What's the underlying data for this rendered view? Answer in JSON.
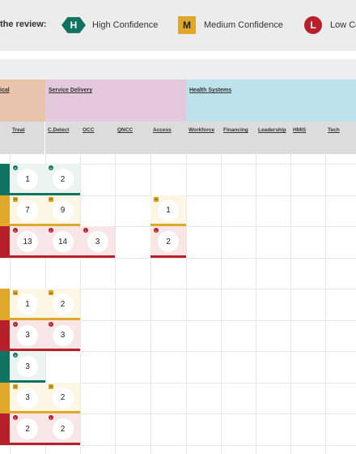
{
  "legend": {
    "title": "the review:",
    "high": {
      "symbol": "H",
      "label": "High Confidence"
    },
    "medium": {
      "symbol": "M",
      "label": "Medium Confidence"
    },
    "low": {
      "symbol": "L",
      "label": "Low Co"
    }
  },
  "groups": {
    "clinical": {
      "label": "ical"
    },
    "service_delivery": {
      "label": "Service Delivery"
    },
    "health_systems": {
      "label": "Health Systems"
    }
  },
  "columns": [
    "Treat",
    "C.Detect",
    "OCC",
    "QNCC",
    "Access",
    "Workforce",
    "Financing",
    "Leadership",
    "HMIS",
    "Tech"
  ],
  "colors": {
    "clinical": "#e9c4ad",
    "service_delivery": "#e4c8dd",
    "health_systems": "#bde2ec",
    "high": "#0f7360",
    "medium": "#e0a82a",
    "low": "#b5202b",
    "high_bg": "#ecf4f1",
    "medium_bg": "#fdf6e4",
    "low_bg": "#f8e6e7"
  },
  "rows": [
    {
      "cells": [
        {
          "col": "edge",
          "conf": "H"
        },
        {
          "col": "Treat",
          "value": "1",
          "conf": "H"
        },
        {
          "col": "C.Detect",
          "value": "2",
          "conf": "H"
        }
      ]
    },
    {
      "cells": [
        {
          "col": "edge",
          "conf": "M"
        },
        {
          "col": "Treat",
          "value": "7",
          "conf": "M"
        },
        {
          "col": "C.Detect",
          "value": "9",
          "conf": "M"
        },
        {
          "col": "Access",
          "value": "1",
          "conf": "M"
        }
      ]
    },
    {
      "cells": [
        {
          "col": "edge",
          "conf": "L"
        },
        {
          "col": "Treat",
          "value": "13",
          "conf": "L"
        },
        {
          "col": "C.Detect",
          "value": "14",
          "conf": "L"
        },
        {
          "col": "OCC",
          "value": "3",
          "conf": "L"
        },
        {
          "col": "Access",
          "value": "2",
          "conf": "L"
        }
      ]
    },
    {
      "cells": []
    },
    {
      "cells": [
        {
          "col": "edge",
          "conf": "M"
        },
        {
          "col": "Treat",
          "value": "1",
          "conf": "M"
        },
        {
          "col": "C.Detect",
          "value": "2",
          "conf": "M"
        }
      ]
    },
    {
      "cells": [
        {
          "col": "edge",
          "conf": "L"
        },
        {
          "col": "Treat",
          "value": "3",
          "conf": "L"
        },
        {
          "col": "C.Detect",
          "value": "3",
          "conf": "L"
        }
      ]
    },
    {
      "cells": [
        {
          "col": "edge",
          "conf": "H"
        },
        {
          "col": "Treat",
          "value": "3",
          "conf": "H"
        }
      ]
    },
    {
      "cells": [
        {
          "col": "edge",
          "conf": "M"
        },
        {
          "col": "Treat",
          "value": "3",
          "conf": "M"
        },
        {
          "col": "C.Detect",
          "value": "2",
          "conf": "M"
        }
      ]
    },
    {
      "cells": [
        {
          "col": "edge",
          "conf": "L"
        },
        {
          "col": "Treat",
          "value": "2",
          "conf": "L"
        },
        {
          "col": "C.Detect",
          "value": "2",
          "conf": "L"
        }
      ]
    }
  ]
}
